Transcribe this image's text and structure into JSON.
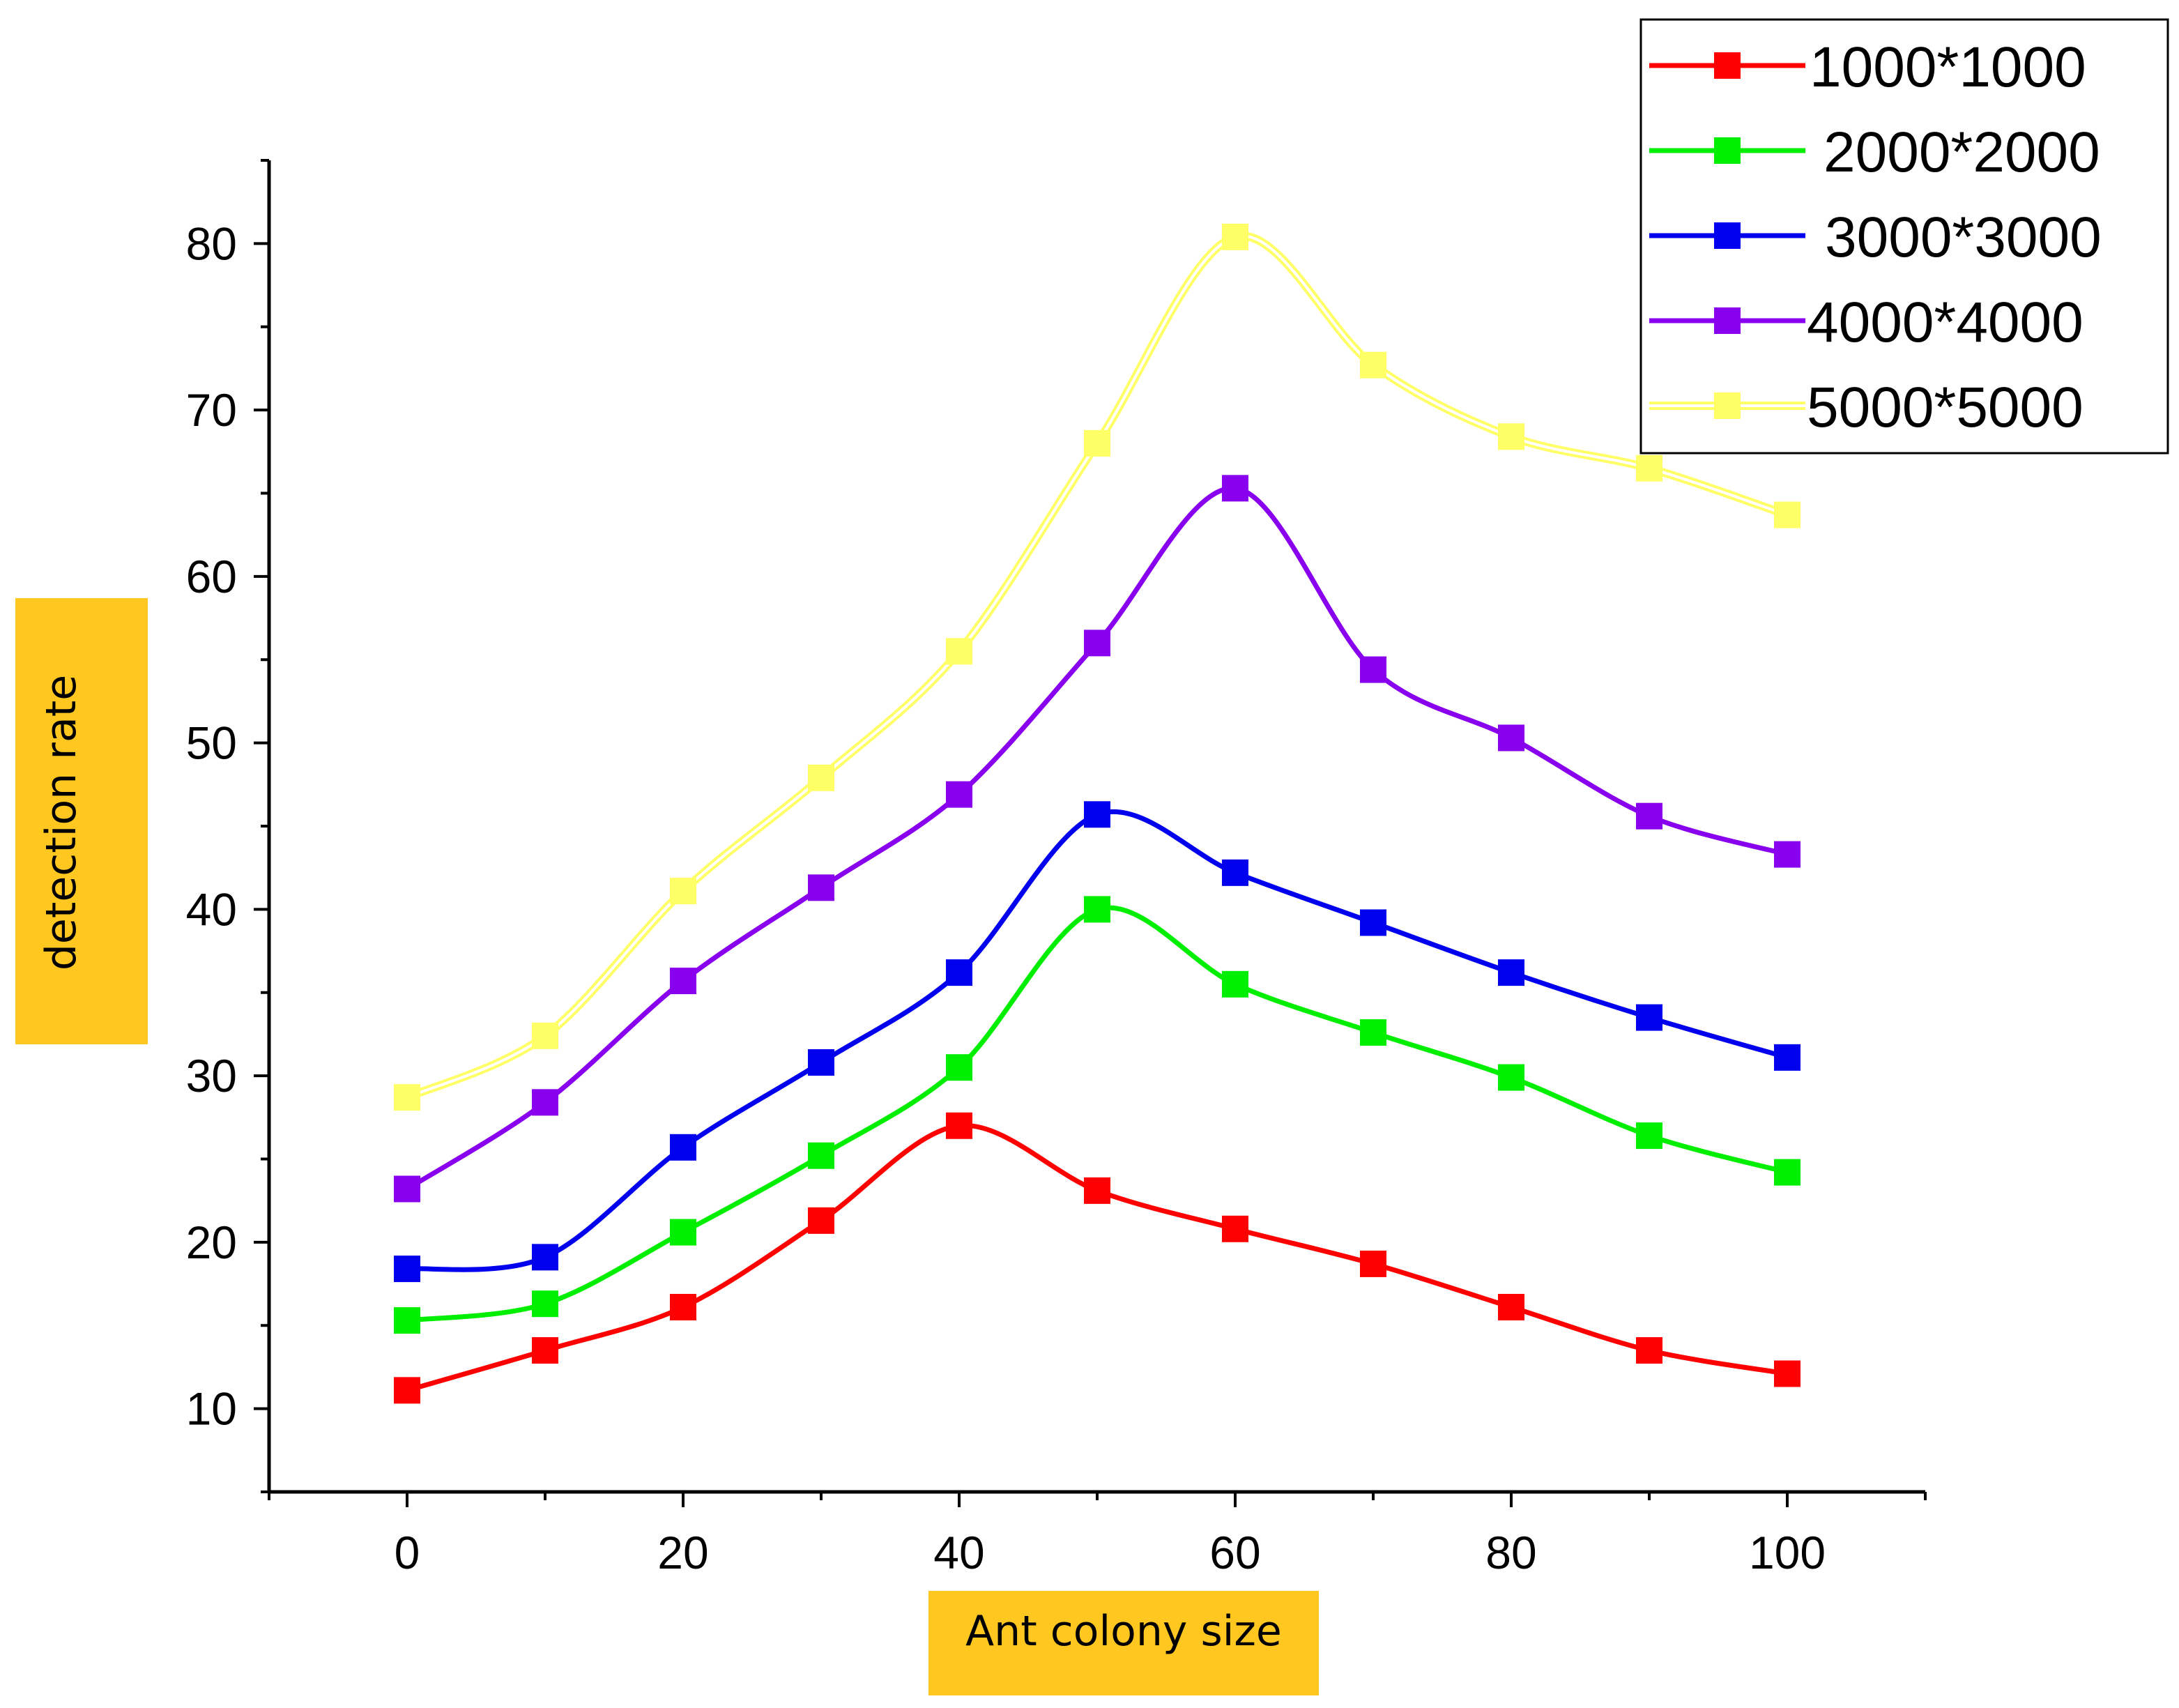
{
  "chart_data": {
    "type": "line",
    "title": "",
    "xlabel": "Ant colony size",
    "ylabel": "detection rate",
    "x": [
      0,
      10,
      20,
      30,
      40,
      50,
      60,
      70,
      80,
      90,
      100
    ],
    "xlim": [
      -10,
      110
    ],
    "ylim": [
      5,
      85
    ],
    "xticks": [
      0,
      20,
      40,
      60,
      80,
      100
    ],
    "yticks": [
      10,
      20,
      30,
      40,
      50,
      60,
      70,
      80
    ],
    "xtick_labels": [
      "0",
      "20",
      "40",
      "60",
      "80",
      "100"
    ],
    "ytick_labels": [
      "10",
      "20",
      "30",
      "40",
      "50",
      "60",
      "70",
      "80"
    ],
    "grid": false,
    "legend_position": "top-right",
    "label_highlight_color": "#ffc720",
    "series": [
      {
        "name": "1000*1000",
        "color": "#ff0000",
        "style": "solid",
        "values": [
          11.1,
          13.5,
          16.1,
          21.3,
          27.0,
          23.1,
          20.8,
          18.7,
          16.1,
          13.5,
          12.1
        ]
      },
      {
        "name": "2000*2000",
        "color": "#00ee00",
        "style": "solid",
        "values": [
          15.3,
          16.3,
          20.6,
          25.2,
          30.5,
          40.0,
          35.5,
          32.6,
          29.9,
          26.4,
          24.2
        ]
      },
      {
        "name": "3000*3000",
        "color": "#0000ee",
        "style": "solid",
        "values": [
          18.4,
          19.1,
          25.7,
          30.8,
          36.2,
          45.7,
          42.2,
          39.2,
          36.2,
          33.5,
          31.1
        ]
      },
      {
        "name": "4000*4000",
        "color": "#8800ee",
        "style": "solid",
        "values": [
          23.2,
          28.4,
          35.7,
          41.3,
          46.9,
          56.0,
          65.3,
          54.4,
          50.3,
          45.6,
          43.3
        ]
      },
      {
        "name": "5000*5000",
        "color": "#ffff66",
        "style": "double",
        "values": [
          28.7,
          32.4,
          41.1,
          47.9,
          55.5,
          68.0,
          80.4,
          72.7,
          68.4,
          66.5,
          63.7
        ]
      }
    ]
  }
}
